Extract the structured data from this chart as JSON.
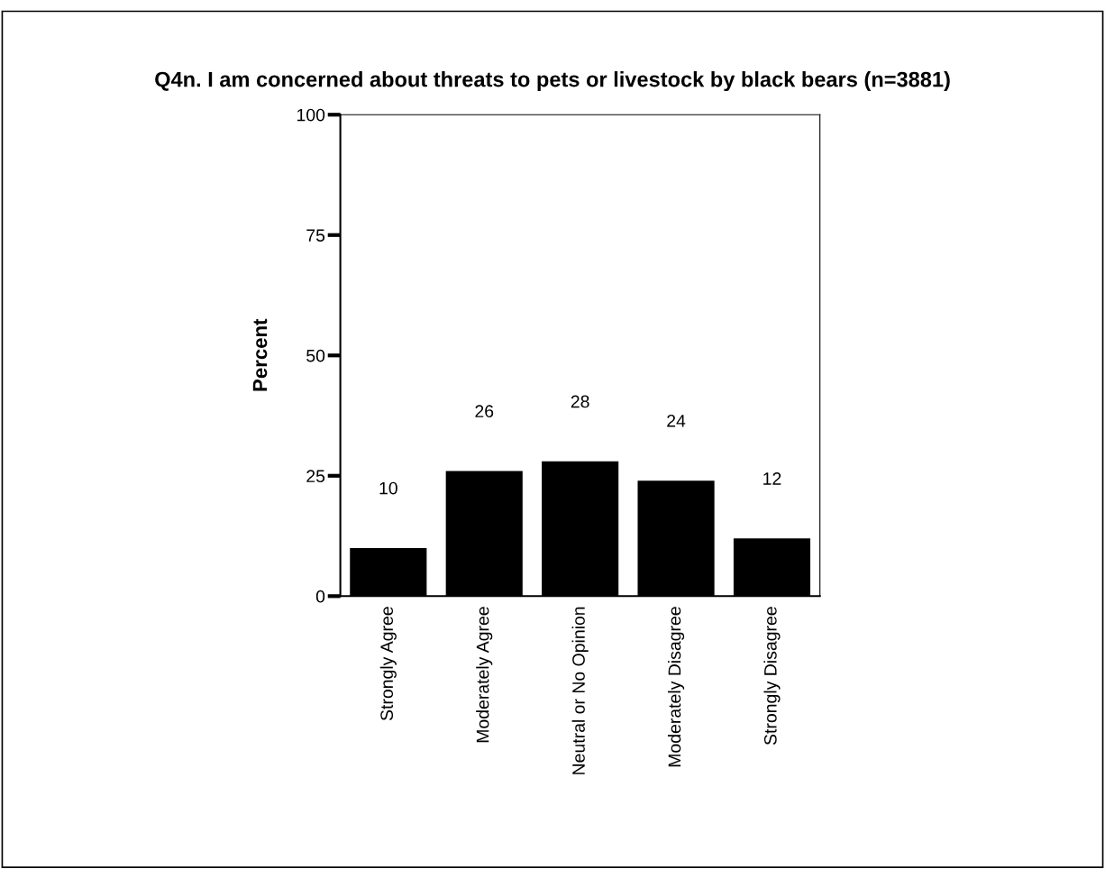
{
  "chart_data": {
    "type": "bar",
    "title": "Q4n. I am concerned about threats to pets or livestock by black bears (n=3881)",
    "ylabel": "Percent",
    "categories": [
      "Strongly Agree",
      "Moderately Agree",
      "Neutral or No Opinion",
      "Moderately Disagree",
      "Strongly Disagree"
    ],
    "values": [
      10,
      26,
      28,
      24,
      12
    ],
    "color": "#000000",
    "ylim": [
      0,
      100
    ],
    "yticks": [
      0,
      25,
      50,
      75,
      100
    ],
    "grid": false,
    "data_labels": true
  }
}
